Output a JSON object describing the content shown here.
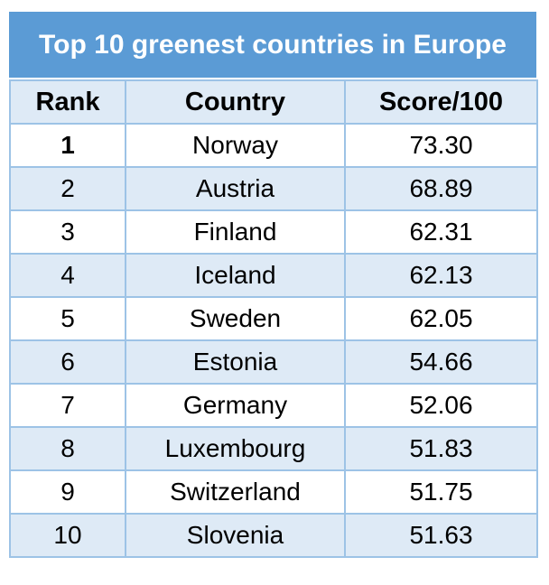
{
  "table": {
    "title": "Top 10 greenest countries in Europe",
    "columns": [
      "Rank",
      "Country",
      "Score/100"
    ],
    "rows": [
      {
        "rank": "1",
        "country": "Norway",
        "score": "73.30"
      },
      {
        "rank": "2",
        "country": "Austria",
        "score": "68.89"
      },
      {
        "rank": "3",
        "country": "Finland",
        "score": "62.31"
      },
      {
        "rank": "4",
        "country": "Iceland",
        "score": "62.13"
      },
      {
        "rank": "5",
        "country": "Sweden",
        "score": "62.05"
      },
      {
        "rank": "6",
        "country": "Estonia",
        "score": "54.66"
      },
      {
        "rank": "7",
        "country": "Germany",
        "score": "52.06"
      },
      {
        "rank": "8",
        "country": "Luxembourg",
        "score": "51.83"
      },
      {
        "rank": "9",
        "country": "Switzerland",
        "score": "51.75"
      },
      {
        "rank": "10",
        "country": "Slovenia",
        "score": "51.63"
      }
    ],
    "colors": {
      "title_bg": "#5B9BD5",
      "title_text": "#FFFFFF",
      "header_row_bg": "#DEEAF6",
      "banded_row_bg": "#DEEAF6",
      "plain_row_bg": "#FFFFFF",
      "border": "#9DC3E6",
      "body_text": "#000000"
    }
  },
  "chart_data": {
    "type": "table",
    "title": "Top 10 greenest countries in Europe",
    "columns": [
      "Rank",
      "Country",
      "Score/100"
    ],
    "rows": [
      [
        1,
        "Norway",
        73.3
      ],
      [
        2,
        "Austria",
        68.89
      ],
      [
        3,
        "Finland",
        62.31
      ],
      [
        4,
        "Iceland",
        62.13
      ],
      [
        5,
        "Sweden",
        62.05
      ],
      [
        6,
        "Estonia",
        54.66
      ],
      [
        7,
        "Germany",
        52.06
      ],
      [
        8,
        "Luxembourg",
        51.83
      ],
      [
        9,
        "Switzerland",
        51.75
      ],
      [
        10,
        "Slovenia",
        51.63
      ]
    ],
    "layout": {
      "banded_rows": true,
      "band_start": "row2",
      "header_bold": true,
      "first_rank_bold": true,
      "alignment": "center"
    }
  }
}
